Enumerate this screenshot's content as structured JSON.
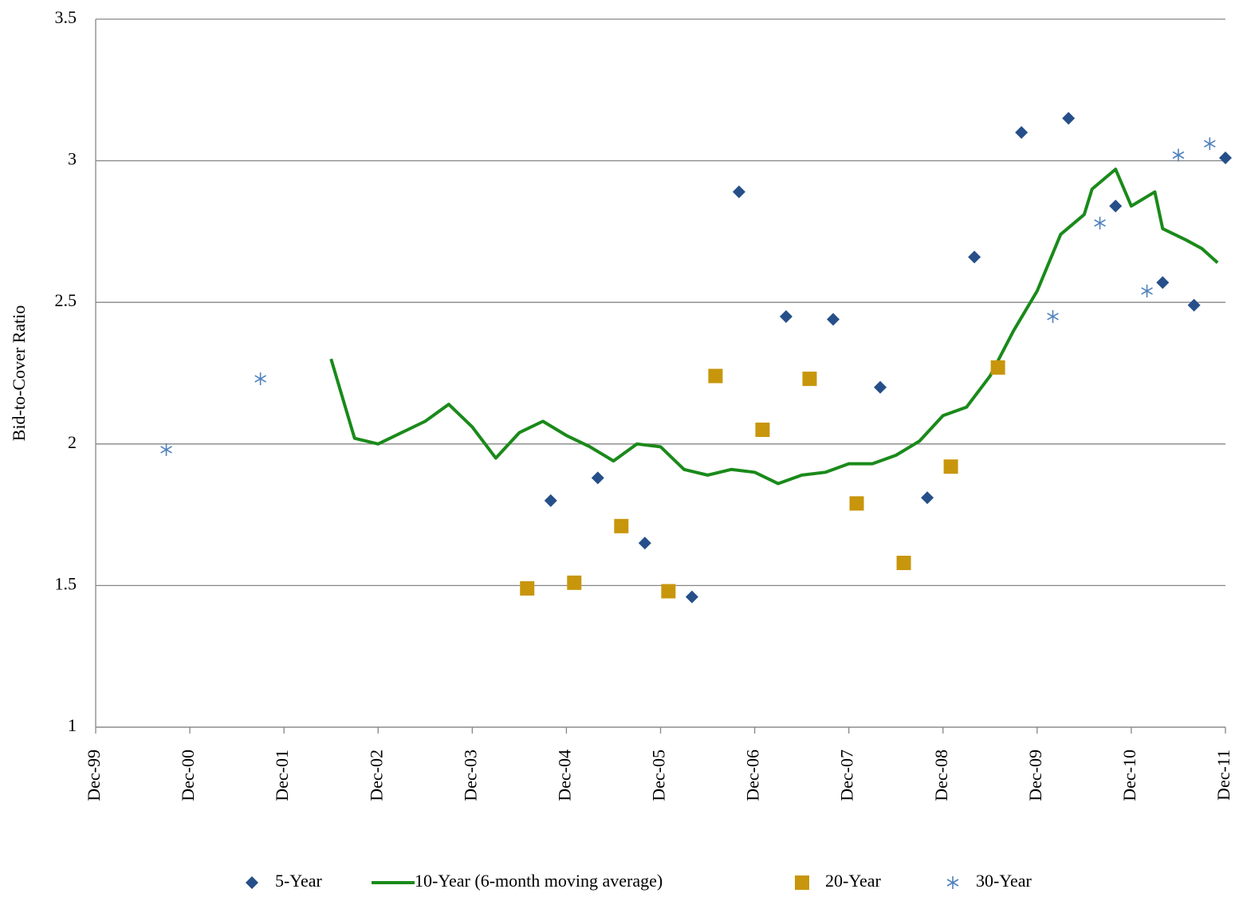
{
  "chart_data": {
    "type": "scatter",
    "y_label": "Bid-to-Cover Ratio",
    "ylim": [
      1,
      3.5
    ],
    "yticks": [
      1,
      1.5,
      2,
      2.5,
      3,
      3.5
    ],
    "xlim": [
      "Dec-99",
      "Dec-11"
    ],
    "xticks": [
      "Dec-99",
      "Dec-00",
      "Dec-01",
      "Dec-02",
      "Dec-03",
      "Dec-04",
      "Dec-05",
      "Dec-06",
      "Dec-07",
      "Dec-08",
      "Dec-09",
      "Dec-10",
      "Dec-11"
    ],
    "grid": true,
    "legend": "bottom",
    "series": [
      {
        "name": "5-Year",
        "color": "#264f8a",
        "marker": "diamond",
        "x": [
          "Oct-04",
          "Apr-05",
          "Oct-05",
          "Apr-06",
          "Oct-06",
          "Apr-07",
          "Oct-07",
          "Apr-08",
          "Oct-08",
          "Apr-09",
          "Oct-09",
          "Apr-10",
          "Oct-10",
          "Apr-11",
          "Aug-11",
          "Dec-11"
        ],
        "values": [
          1.8,
          1.88,
          1.65,
          1.46,
          2.89,
          2.45,
          2.44,
          2.2,
          1.81,
          2.66,
          3.1,
          3.15,
          2.84,
          2.57,
          2.49,
          3.01
        ]
      },
      {
        "name": "10-Year (6-month moving average)",
        "color": "#1a8a1a",
        "marker": "line",
        "x": [
          "Jun-02",
          "Sep-02",
          "Dec-02",
          "Mar-03",
          "Jun-03",
          "Sep-03",
          "Dec-03",
          "Mar-04",
          "Jun-04",
          "Sep-04",
          "Dec-04",
          "Mar-05",
          "Jun-05",
          "Sep-05",
          "Dec-05",
          "Mar-06",
          "Jun-06",
          "Sep-06",
          "Dec-06",
          "Mar-07",
          "Jun-07",
          "Sep-07",
          "Dec-07",
          "Mar-08",
          "Jun-08",
          "Sep-08",
          "Dec-08",
          "Mar-09",
          "Jun-09",
          "Sep-09",
          "Dec-09",
          "Mar-10",
          "Jun-10",
          "Jul-10",
          "Oct-10",
          "Dec-10",
          "Mar-11",
          "Apr-11",
          "Jul-11",
          "Sep-11",
          "Nov-11"
        ],
        "values": [
          2.3,
          2.02,
          2.0,
          2.04,
          2.08,
          2.14,
          2.06,
          1.95,
          2.04,
          2.08,
          2.03,
          1.99,
          1.94,
          2.0,
          1.99,
          1.91,
          1.89,
          1.91,
          1.9,
          1.86,
          1.89,
          1.9,
          1.93,
          1.93,
          1.96,
          2.01,
          2.1,
          2.13,
          2.24,
          2.4,
          2.54,
          2.74,
          2.81,
          2.9,
          2.97,
          2.84,
          2.89,
          2.76,
          2.72,
          2.69,
          2.64
        ]
      },
      {
        "name": "20-Year",
        "color": "#c8960c",
        "marker": "square",
        "x": [
          "Jul-04",
          "Jan-05",
          "Jul-05",
          "Jan-06",
          "Jul-06",
          "Jan-07",
          "Jul-07",
          "Jan-08",
          "Jul-08",
          "Jan-09",
          "Jul-09"
        ],
        "values": [
          1.49,
          1.51,
          1.71,
          1.48,
          2.24,
          2.05,
          2.23,
          1.79,
          1.58,
          1.92,
          2.27
        ]
      },
      {
        "name": "30-Year",
        "color": "#4f81bd",
        "marker": "asterisk",
        "x": [
          "Sep-00",
          "Sep-01",
          "Feb-10",
          "Aug-10",
          "Feb-11",
          "Jun-11",
          "Oct-11"
        ],
        "values": [
          1.98,
          2.23,
          2.45,
          2.78,
          2.54,
          3.02,
          3.06
        ]
      }
    ]
  }
}
